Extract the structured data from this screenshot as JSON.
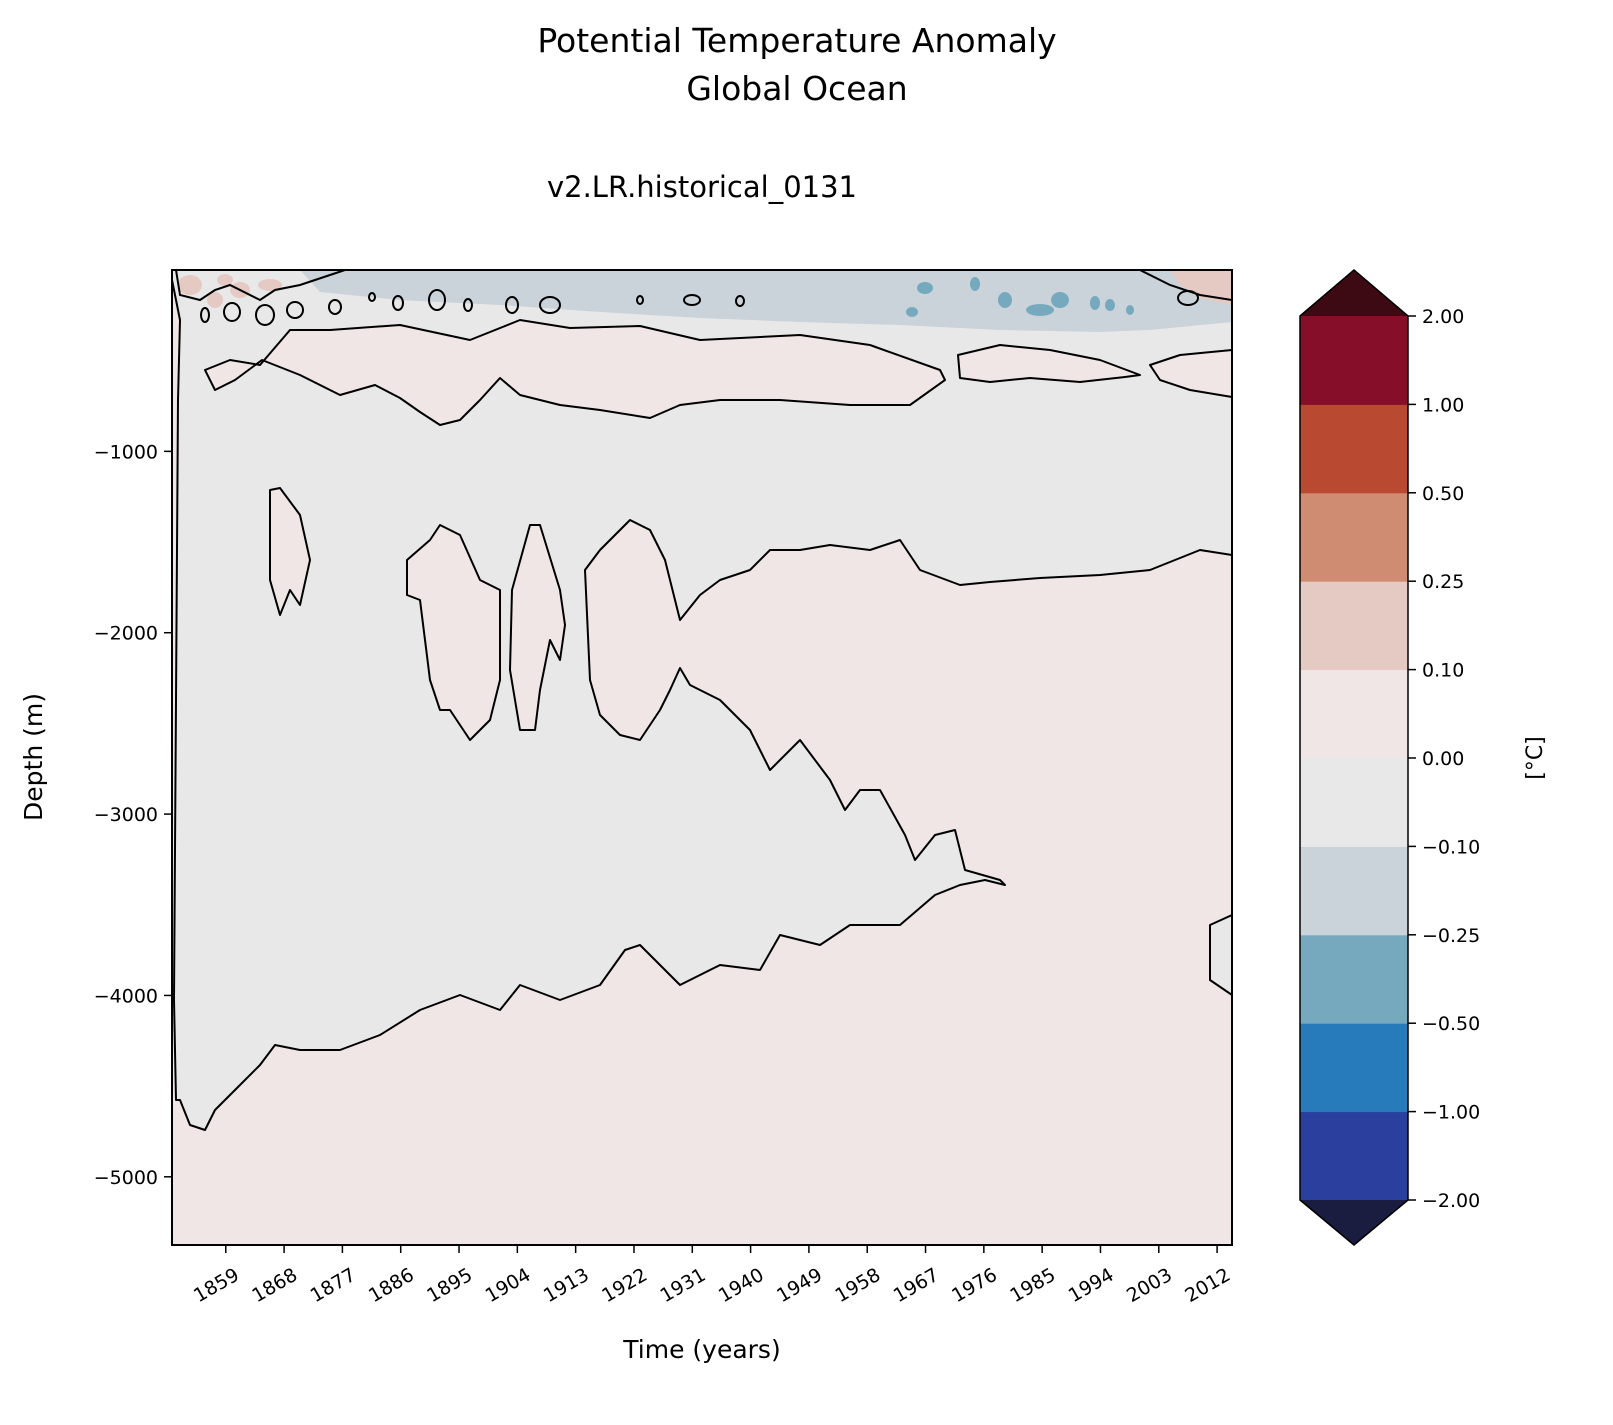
{
  "chart_data": {
    "type": "heatmap",
    "title": "Potential Temperature Anomaly",
    "title_line2": "Global Ocean",
    "subtitle": "v2.LR.historical_0131",
    "xlabel": "Time (years)",
    "ylabel": "Depth (m)",
    "xlim": [
      1850.7,
      2014.3
    ],
    "ylim": [
      -5376,
      0
    ],
    "xticks": [
      "1859",
      "1868",
      "1877",
      "1886",
      "1895",
      "1904",
      "1913",
      "1922",
      "1931",
      "1940",
      "1949",
      "1958",
      "1967",
      "1976",
      "1985",
      "1994",
      "2003",
      "2012"
    ],
    "xtick_values": [
      1859,
      1868,
      1877,
      1886,
      1895,
      1904,
      1913,
      1922,
      1931,
      1940,
      1949,
      1958,
      1967,
      1976,
      1985,
      1994,
      2003,
      2012
    ],
    "yticks": [
      "−1000",
      "−2000",
      "−3000",
      "−4000",
      "−5000"
    ],
    "ytick_values": [
      -1000,
      -2000,
      -3000,
      -4000,
      -5000
    ],
    "colorbar": {
      "label": "[°C]",
      "levels": [
        -2.0,
        -1.0,
        -0.5,
        -0.25,
        -0.1,
        0.0,
        0.1,
        0.25,
        0.5,
        1.0,
        2.0
      ],
      "tick_labels": [
        "−2.00",
        "−1.00",
        "−0.50",
        "−0.25",
        "−0.10",
        "0.00",
        "0.10",
        "0.25",
        "0.50",
        "1.00",
        "2.00"
      ],
      "colors": [
        "#2a3f9e",
        "#277bba",
        "#76a9bd",
        "#cad3d9",
        "#e9e8e9",
        "#efe6e5",
        "#e5cac3",
        "#cf8c72",
        "#b94a31",
        "#870e29"
      ],
      "under_color": "#1a1c40",
      "over_color": "#3d0a14",
      "extend": "both"
    },
    "contour_level": 0.0,
    "description_of_field": {
      "surface_0_300m": "mixed weak anomalies, cooling (-0.1 to -0.5) after ~1960",
      "band_300_800m": "weak warming (0 to 0.1)",
      "deep_wedge": "weak cooling (-0.1 to 0) converging near 1980 at -3400 m",
      "abyss_and_mid_depth_post_1920": "weak warming (0 to 0.1)"
    }
  }
}
